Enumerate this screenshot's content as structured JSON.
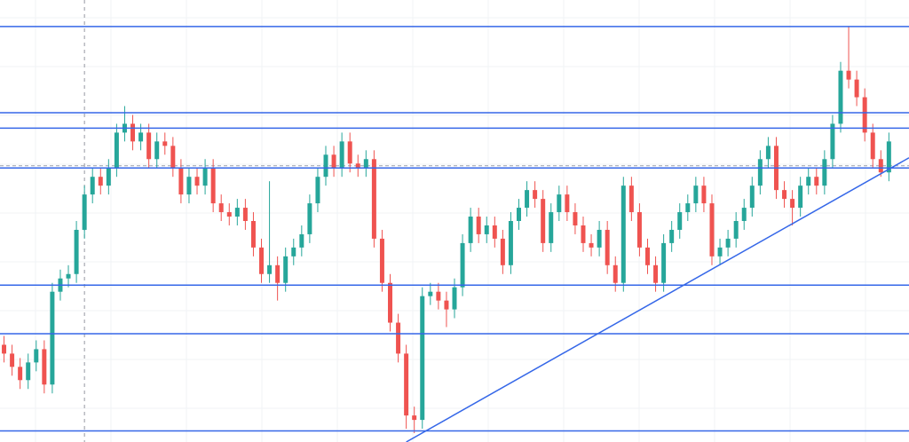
{
  "chart_data": {
    "type": "candlestick",
    "xlim": [
      -0.5,
      112.5
    ],
    "ylim": [
      0,
      100
    ],
    "up_color": "#26a69a",
    "down_color": "#ef5350",
    "line_color": "#3567e8",
    "grid": true,
    "open": [
      22,
      20,
      17,
      14,
      18,
      21,
      13,
      34,
      37,
      38,
      48,
      56,
      60,
      58,
      62,
      70,
      72,
      68,
      70,
      64,
      68,
      67,
      62,
      56,
      60,
      58,
      62,
      54,
      52,
      51,
      53,
      50,
      44,
      38,
      40,
      36,
      42,
      44,
      47,
      54,
      60,
      65,
      62,
      68,
      63,
      62,
      64,
      46,
      36,
      27,
      20,
      6,
      5,
      33,
      34,
      32,
      30,
      35,
      45,
      51,
      47,
      49,
      46,
      40,
      50,
      53,
      57,
      55,
      45,
      52,
      56,
      52,
      49,
      45,
      44,
      48,
      40,
      36,
      58,
      52,
      44,
      40,
      36,
      45,
      48,
      52,
      54,
      58,
      54,
      42,
      44,
      46,
      50,
      53,
      58,
      64,
      67,
      57,
      55,
      53,
      58,
      60,
      58,
      64,
      72,
      84,
      82,
      78,
      70,
      64,
      61
    ],
    "high": [
      24,
      22,
      19,
      20,
      23,
      23,
      36,
      39,
      40,
      50,
      58,
      62,
      62,
      64,
      72,
      76,
      74,
      72,
      72,
      70,
      70,
      69,
      64,
      62,
      62,
      64,
      64,
      56,
      54,
      55,
      55,
      52,
      46,
      59,
      42,
      44,
      46,
      49,
      56,
      62,
      67,
      67,
      70,
      70,
      65,
      66,
      66,
      48,
      38,
      29,
      22,
      8,
      35,
      36,
      36,
      34,
      37,
      47,
      53,
      53,
      51,
      51,
      48,
      52,
      55,
      59,
      59,
      57,
      54,
      58,
      58,
      54,
      51,
      47,
      50,
      50,
      42,
      60,
      60,
      54,
      46,
      42,
      47,
      50,
      54,
      56,
      60,
      60,
      56,
      46,
      48,
      52,
      55,
      60,
      66,
      69,
      69,
      59,
      57,
      60,
      62,
      62,
      66,
      74,
      86,
      94,
      84,
      80,
      72,
      66,
      70
    ],
    "low": [
      18,
      15,
      12,
      12,
      16,
      11,
      11,
      32,
      35,
      36,
      46,
      54,
      56,
      56,
      60,
      68,
      66,
      66,
      62,
      62,
      65,
      60,
      54,
      54,
      56,
      56,
      52,
      50,
      49,
      49,
      48,
      42,
      36,
      36,
      32,
      34,
      40,
      42,
      45,
      52,
      58,
      60,
      60,
      61,
      60,
      60,
      44,
      34,
      25,
      18,
      3,
      2,
      3,
      31,
      30,
      26,
      28,
      33,
      43,
      45,
      45,
      44,
      38,
      38,
      48,
      51,
      53,
      43,
      43,
      50,
      50,
      47,
      43,
      42,
      42,
      38,
      34,
      34,
      50,
      42,
      38,
      34,
      34,
      43,
      46,
      50,
      52,
      52,
      40,
      40,
      42,
      44,
      48,
      51,
      56,
      62,
      55,
      53,
      49,
      51,
      56,
      56,
      56,
      62,
      70,
      80,
      76,
      68,
      62,
      60,
      59
    ],
    "close": [
      20,
      17,
      14,
      18,
      21,
      13,
      34,
      37,
      38,
      48,
      56,
      60,
      58,
      62,
      70,
      72,
      68,
      70,
      64,
      68,
      67,
      62,
      56,
      60,
      58,
      62,
      54,
      52,
      51,
      53,
      50,
      44,
      38,
      40,
      36,
      42,
      44,
      47,
      54,
      60,
      65,
      62,
      68,
      63,
      62,
      64,
      46,
      36,
      27,
      20,
      6,
      5,
      33,
      34,
      32,
      30,
      35,
      45,
      51,
      47,
      49,
      46,
      40,
      50,
      53,
      57,
      55,
      45,
      52,
      56,
      52,
      49,
      45,
      44,
      48,
      40,
      36,
      58,
      52,
      44,
      40,
      36,
      45,
      48,
      52,
      54,
      58,
      54,
      42,
      44,
      46,
      50,
      53,
      58,
      64,
      67,
      57,
      55,
      53,
      58,
      60,
      58,
      64,
      72,
      84,
      82,
      78,
      70,
      64,
      61,
      68
    ],
    "levels": [
      94,
      74.5,
      71,
      62,
      35.5,
      24.5,
      2.5
    ],
    "last_price": 62.5,
    "crosshair_x": 10,
    "trendline": {
      "x": [
        50,
        112.5
      ],
      "values": [
        0,
        64.3
      ]
    }
  }
}
